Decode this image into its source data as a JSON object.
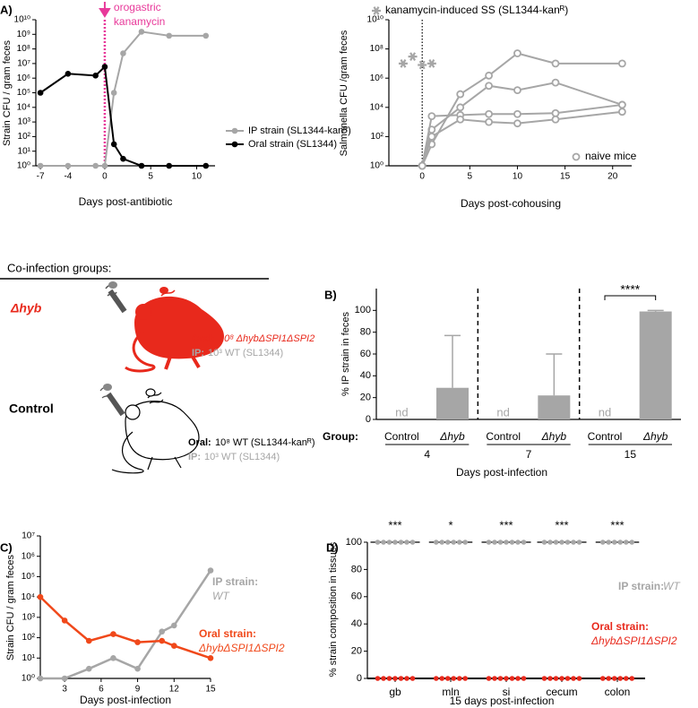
{
  "chart_data": [
    {
      "type": "line",
      "panel": "A)",
      "annotation": [
        "orogastric",
        "kanamycin"
      ],
      "annotation_color": "#e8399a",
      "marker_x": 0,
      "log_y": true,
      "ylabel": "Strain CFU / gram feces",
      "xlabel": "Days post-antibiotic",
      "xlim": [
        -7.5,
        12
      ],
      "xticks": [
        -7,
        -4,
        0,
        5,
        10
      ],
      "ylim": [
        1,
        10000000000
      ],
      "yticks": [
        {
          "value": 1,
          "label": "10⁰"
        },
        {
          "value": 10,
          "label": "10¹"
        },
        {
          "value": 100,
          "label": "10²"
        },
        {
          "value": 1000,
          "label": "10³"
        },
        {
          "value": 10000,
          "label": "10⁴"
        },
        {
          "value": 100000,
          "label": "10⁵"
        },
        {
          "value": 1000000,
          "label": "10⁶"
        },
        {
          "value": 10000000,
          "label": "10⁷"
        },
        {
          "value": 100000000,
          "label": "10⁸"
        },
        {
          "value": 1000000000,
          "label": "10⁹"
        },
        {
          "value": 10000000000,
          "label": "10¹⁰"
        }
      ],
      "series": [
        {
          "name": "IP strain (SL1344-kanᴿ)",
          "color": "#a6a6a6",
          "marker": "circle",
          "x": [
            -7,
            -4,
            -1,
            0,
            1,
            2,
            4,
            7,
            11
          ],
          "values": [
            1,
            1,
            1,
            1,
            100000,
            50000000,
            1500000000,
            800000000,
            800000000
          ]
        },
        {
          "name": "Oral strain (SL1344)",
          "color": "#000000",
          "marker": "circle",
          "x": [
            -7,
            -4,
            -1,
            0,
            1,
            2,
            4,
            7,
            11
          ],
          "values": [
            100000,
            2000000,
            1500000,
            6000000,
            30,
            3,
            1,
            1,
            1
          ]
        }
      ]
    },
    {
      "type": "line",
      "marker_x": 0,
      "log_y": true,
      "ylabel": "Salmonella CFU /gram feces",
      "xlabel": "Days post-cohousing",
      "xlim": [
        -3.5,
        22
      ],
      "xticks": [
        0,
        5,
        10,
        15,
        20
      ],
      "ylim": [
        1,
        10000000000
      ],
      "yticks": [
        {
          "value": 1,
          "label": "10⁰"
        },
        {
          "value": 100,
          "label": "10²"
        },
        {
          "value": 10000,
          "label": "10⁴"
        },
        {
          "value": 1000000,
          "label": "10⁶"
        },
        {
          "value": 100000000,
          "label": "10⁸"
        },
        {
          "value": 10000000000,
          "label": "10¹⁰"
        }
      ],
      "series": [
        {
          "name": "naive mice",
          "color": "#a6a6a6",
          "marker": "open-circle",
          "x": [
            0,
            1,
            4,
            7,
            10,
            14,
            21
          ],
          "values": [
            1,
            30,
            80000,
            1500000,
            50000000,
            10000000,
            10000000
          ]
        },
        {
          "color": "#a6a6a6",
          "marker": "open-circle",
          "x": [
            0,
            1,
            4,
            7,
            10,
            14,
            21
          ],
          "values": [
            1,
            300,
            10000,
            300000,
            150000,
            500000,
            15000
          ]
        },
        {
          "color": "#a6a6a6",
          "marker": "open-circle",
          "x": [
            0,
            1,
            4,
            7,
            10,
            14,
            21
          ],
          "values": [
            1,
            2500,
            3000,
            3500,
            3500,
            4000,
            15000
          ]
        },
        {
          "color": "#a6a6a6",
          "marker": "open-circle",
          "x": [
            0,
            1,
            4,
            7,
            10,
            14,
            21
          ],
          "values": [
            1,
            100,
            1500,
            1000,
            800,
            1500,
            5000
          ]
        },
        {
          "name": "kanamycin-induced SS (SL1344-kanᴿ)",
          "color": "#a6a6a6",
          "marker": "asterisk",
          "line": false,
          "x": [
            -2,
            -1,
            0,
            1
          ],
          "values": [
            10000000,
            30000000,
            8000000,
            10000000
          ]
        }
      ]
    },
    {
      "type": "bar",
      "panel": "B)",
      "ylabel": "% IP strain in feces",
      "xlabel": "Days post-infection",
      "group_label": "Group:",
      "ylim": [
        0,
        120
      ],
      "yticks": [
        0,
        20,
        40,
        60,
        80,
        100
      ],
      "categories": [
        "4",
        "7",
        "15"
      ],
      "series": [
        {
          "name": "Control",
          "values": [
            null,
            null,
            null
          ],
          "value_labels": [
            "nd",
            "nd",
            "nd"
          ]
        },
        {
          "name": "Δhyb",
          "color": "#a6a6a6",
          "values": [
            29,
            22,
            99
          ],
          "errors": [
            48,
            38,
            1
          ]
        }
      ],
      "significance": [
        null,
        null,
        "****"
      ]
    },
    {
      "type": "line",
      "panel": "C)",
      "log_y": true,
      "ylabel": "Strain CFU / gram feces",
      "xlabel": "Days post-infection",
      "xlim": [
        1,
        15
      ],
      "xticks": [
        3,
        6,
        9,
        12,
        15
      ],
      "ylim": [
        1,
        10000000
      ],
      "yticks": [
        {
          "value": 1,
          "label": "10⁰"
        },
        {
          "value": 10,
          "label": "10¹"
        },
        {
          "value": 100,
          "label": "10²"
        },
        {
          "value": 1000,
          "label": "10³"
        },
        {
          "value": 10000,
          "label": "10⁴"
        },
        {
          "value": 100000,
          "label": "10⁵"
        },
        {
          "value": 1000000,
          "label": "10⁶"
        },
        {
          "value": 10000000,
          "label": "10⁷"
        }
      ],
      "series": [
        {
          "name": "IP strain:",
          "sublabel": "WT",
          "color": "#a6a6a6",
          "marker": "circle",
          "x": [
            1,
            3,
            5,
            7,
            9,
            11,
            12,
            15
          ],
          "values": [
            1,
            1,
            3,
            10,
            3,
            200,
            400,
            200000
          ]
        },
        {
          "name": "Oral strain:",
          "sublabel": "ΔhybΔSPI1ΔSPI2",
          "color": "#f0481a",
          "marker": "circle",
          "x": [
            1,
            3,
            5,
            7,
            9,
            11,
            12,
            15
          ],
          "values": [
            10000,
            700,
            70,
            150,
            60,
            70,
            40,
            10
          ]
        }
      ]
    },
    {
      "type": "strip",
      "panel": "D)",
      "ylabel": "% strain composition in tissues",
      "xlabel": "15 days post-infection",
      "ylim": [
        0,
        100
      ],
      "yticks": [
        0,
        20,
        40,
        60,
        80,
        100
      ],
      "categories": [
        "gb",
        "mln",
        "si",
        "cecum",
        "colon"
      ],
      "significance": [
        "***",
        "*",
        "***",
        "***",
        "***"
      ],
      "series": [
        {
          "name": "IP strain:",
          "sublabel": "WT",
          "color": "#a6a6a6",
          "values": [
            [
              100,
              100,
              100,
              100,
              100,
              100,
              100
            ],
            [
              100,
              100,
              100,
              100,
              100,
              100
            ],
            [
              100,
              100,
              100,
              100,
              100,
              100,
              100
            ],
            [
              100,
              100,
              100,
              100,
              100,
              100,
              100
            ],
            [
              100,
              100,
              100,
              100,
              100,
              100
            ]
          ]
        },
        {
          "name": "Oral strain:",
          "sublabel": "ΔhybΔSPI1ΔSPI2",
          "color": "#e8291c",
          "values": [
            [
              0,
              0,
              0,
              0,
              0,
              0,
              0
            ],
            [
              0,
              0,
              0,
              0,
              0,
              0
            ],
            [
              0,
              0,
              0,
              0,
              0,
              0,
              0
            ],
            [
              0,
              0,
              0,
              0,
              0,
              0,
              0
            ],
            [
              0,
              0,
              0,
              0,
              0,
              0
            ]
          ]
        }
      ]
    }
  ],
  "coinfection": {
    "title": "Co-infection groups:",
    "groups": [
      {
        "name": "Δhyb",
        "oral_label": "Oral:",
        "oral_dose": "10⁸ ΔhybΔSPI1ΔSPI2",
        "ip_label": "IP:",
        "ip_dose": "10³ WT (SL1344)"
      },
      {
        "name": "Control",
        "oral_label": "Oral:",
        "oral_dose": "10⁸ WT (SL1344-kanᴿ)",
        "ip_label": "IP:",
        "ip_dose": "10³ WT (SL1344)"
      }
    ]
  }
}
